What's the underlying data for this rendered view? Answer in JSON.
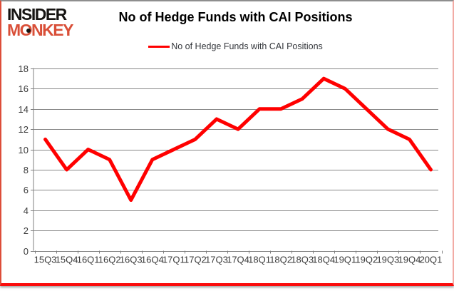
{
  "brand": {
    "line1": "INSIDER",
    "line2": "MONKEY",
    "color": "#d94f38"
  },
  "title": "No of Hedge Funds with CAI Positions",
  "legend": {
    "label": "No of Hedge Funds with CAI Positions",
    "line_color": "#ff0000"
  },
  "chart_data": {
    "type": "line",
    "title": "No of Hedge Funds with CAI Positions",
    "categories": [
      "15Q3",
      "15Q4",
      "16Q1",
      "16Q2",
      "16Q3",
      "16Q4",
      "17Q1",
      "17Q2",
      "17Q3",
      "17Q4",
      "18Q1",
      "18Q2",
      "18Q3",
      "18Q4",
      "19Q1",
      "19Q2",
      "19Q3",
      "19Q4",
      "20Q1"
    ],
    "series": [
      {
        "name": "No of Hedge Funds with CAI Positions",
        "color": "#ff0000",
        "values": [
          11,
          8,
          10,
          9,
          5,
          9,
          10,
          11,
          13,
          12,
          14,
          14,
          15,
          17,
          16,
          14,
          12,
          11,
          8
        ]
      }
    ],
    "xlabel": "",
    "ylabel": "",
    "ylim": [
      0,
      18
    ],
    "ytick_step": 2,
    "grid": true,
    "legend_position": "top-center"
  },
  "colors": {
    "grid": "#898989",
    "axis": "#7f7f7f",
    "tick_label": "#3b3b3b",
    "background": "#ffffff"
  }
}
